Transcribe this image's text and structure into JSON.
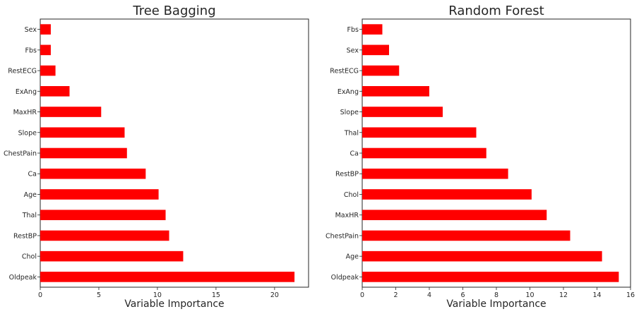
{
  "chart_data": [
    {
      "type": "bar",
      "orientation": "horizontal",
      "title": "Tree Bagging",
      "xlabel": "Variable Importance",
      "ylabel": "",
      "categories": [
        "Sex",
        "Fbs",
        "RestECG",
        "ExAng",
        "MaxHR",
        "Slope",
        "ChestPain",
        "Ca",
        "Age",
        "Thal",
        "RestBP",
        "Chol",
        "Oldpeak"
      ],
      "values": [
        0.9,
        0.9,
        1.3,
        2.5,
        5.2,
        7.2,
        7.4,
        9.0,
        10.1,
        10.7,
        11.0,
        12.2,
        21.7
      ],
      "xlim": [
        0,
        22.9
      ],
      "xticks": [
        "0",
        "5",
        "10",
        "15",
        "20"
      ],
      "grid": false,
      "bar_color": "#ff0000"
    },
    {
      "type": "bar",
      "orientation": "horizontal",
      "title": "Random Forest",
      "xlabel": "Variable Importance",
      "ylabel": "",
      "categories": [
        "Fbs",
        "Sex",
        "RestECG",
        "ExAng",
        "Slope",
        "Thal",
        "Ca",
        "RestBP",
        "Chol",
        "MaxHR",
        "ChestPain",
        "Age",
        "Oldpeak"
      ],
      "values": [
        1.2,
        1.6,
        2.2,
        4.0,
        4.8,
        6.8,
        7.4,
        8.7,
        10.1,
        11.0,
        12.4,
        14.3,
        15.3
      ],
      "xlim": [
        0,
        16
      ],
      "xticks": [
        "0",
        "2",
        "4",
        "6",
        "8",
        "10",
        "12",
        "14",
        "16"
      ],
      "grid": false,
      "bar_color": "#ff0000"
    }
  ]
}
